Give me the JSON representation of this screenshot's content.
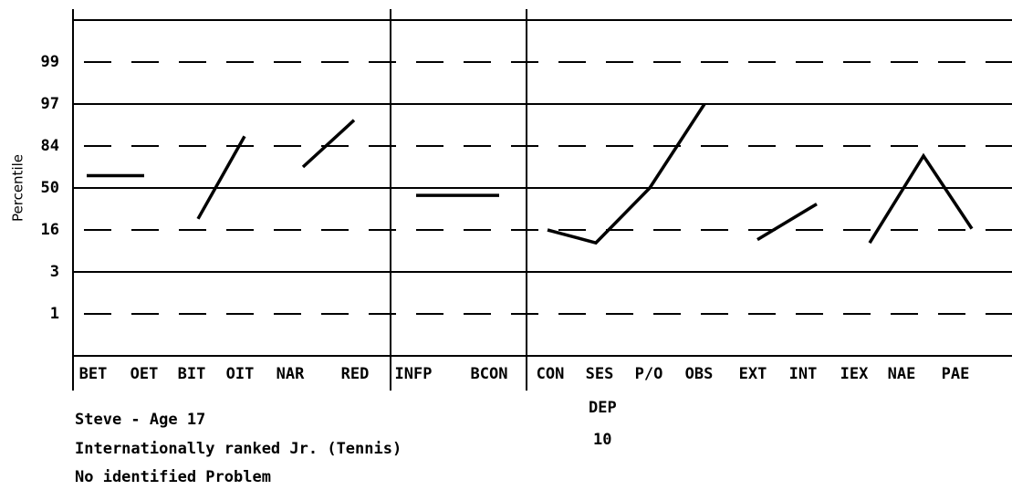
{
  "chart_data": {
    "type": "line",
    "ylabel": "Percentile",
    "categories": [
      "BET",
      "OET",
      "BIT",
      "OIT",
      "NAR",
      "RED",
      "INFP",
      "BCON",
      "CON",
      "SES",
      "P/O",
      "OBS",
      "EXT",
      "INT",
      "IEX",
      "NAE",
      "PAE"
    ],
    "color": "#000000",
    "series": [
      {
        "values": [
          60,
          60,
          null,
          null,
          null,
          null,
          null,
          null,
          null,
          null,
          null,
          null,
          null,
          null,
          null,
          null,
          null
        ]
      },
      {
        "values": [
          null,
          null,
          25,
          87,
          null,
          null,
          null,
          null,
          null,
          null,
          null,
          null,
          null,
          null,
          null,
          null,
          null
        ]
      },
      {
        "values": [
          null,
          null,
          null,
          null,
          67,
          92,
          null,
          null,
          null,
          null,
          null,
          null,
          null,
          null,
          null,
          null,
          null
        ]
      },
      {
        "values": [
          null,
          null,
          null,
          null,
          null,
          null,
          44,
          44,
          null,
          null,
          null,
          null,
          null,
          null,
          null,
          null,
          null
        ]
      },
      {
        "values": [
          null,
          null,
          null,
          null,
          null,
          null,
          null,
          null,
          16,
          12,
          50,
          97,
          null,
          null,
          null,
          null,
          null
        ]
      },
      {
        "values": [
          null,
          null,
          null,
          null,
          null,
          null,
          null,
          null,
          null,
          null,
          null,
          null,
          13,
          37,
          null,
          null,
          null
        ]
      },
      {
        "values": [
          null,
          null,
          null,
          null,
          null,
          null,
          null,
          null,
          null,
          null,
          null,
          null,
          null,
          null,
          12,
          76,
          17
        ]
      }
    ],
    "ylim": [
      0,
      100
    ],
    "yticks": [
      1,
      3,
      16,
      50,
      84,
      97,
      99
    ],
    "grid": true,
    "annotations": [
      "Steve - Age 17",
      "Internationally ranked Jr. (Tennis)",
      "No identified Problem",
      "DEP",
      "10"
    ]
  }
}
